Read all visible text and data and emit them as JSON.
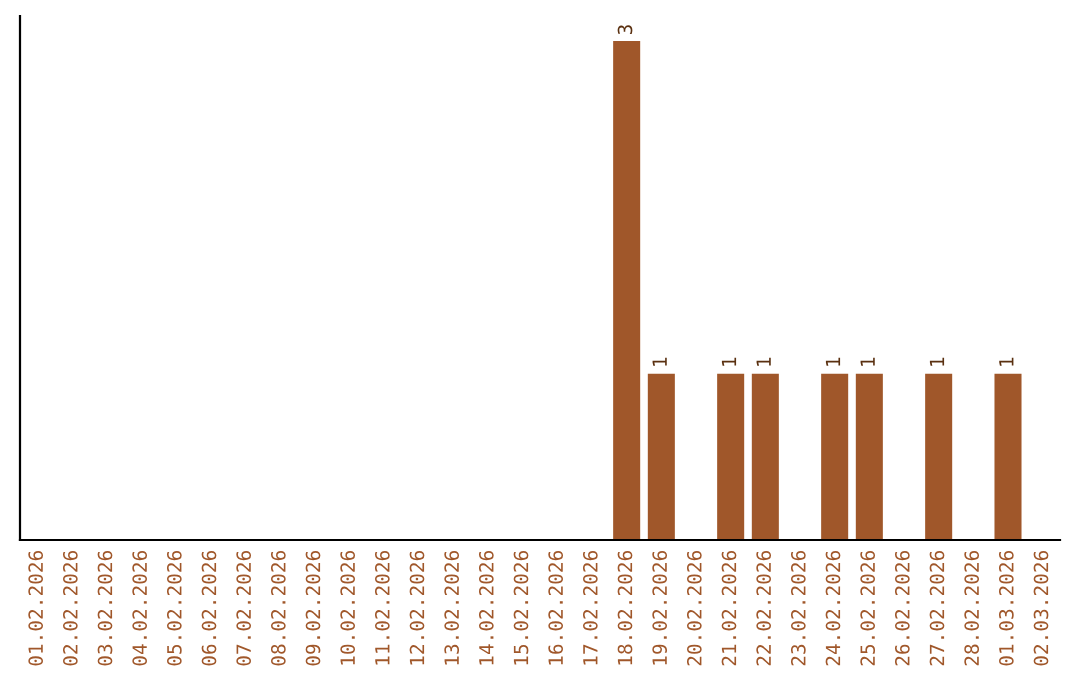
{
  "chart_data": {
    "type": "bar",
    "categories": [
      "01.02.2026",
      "02.02.2026",
      "03.02.2026",
      "04.02.2026",
      "05.02.2026",
      "06.02.2026",
      "07.02.2026",
      "08.02.2026",
      "09.02.2026",
      "10.02.2026",
      "11.02.2026",
      "12.02.2026",
      "13.02.2026",
      "14.02.2026",
      "15.02.2026",
      "16.02.2026",
      "17.02.2026",
      "18.02.2026",
      "19.02.2026",
      "20.02.2026",
      "21.02.2026",
      "22.02.2026",
      "23.02.2026",
      "24.02.2026",
      "25.02.2026",
      "26.02.2026",
      "27.02.2026",
      "28.02.2026",
      "01.03.2026",
      "02.03.2026"
    ],
    "values": [
      null,
      null,
      null,
      null,
      null,
      null,
      null,
      null,
      null,
      null,
      null,
      null,
      null,
      null,
      null,
      null,
      null,
      3,
      1,
      null,
      1,
      1,
      null,
      1,
      1,
      null,
      1,
      null,
      1,
      null
    ],
    "value_labels": [
      null,
      null,
      null,
      null,
      null,
      null,
      null,
      null,
      null,
      null,
      null,
      null,
      null,
      null,
      null,
      null,
      null,
      "3",
      "1",
      null,
      "1",
      "1",
      null,
      "1",
      "1",
      null,
      "1",
      null,
      "1",
      null
    ],
    "color": "#a0572a",
    "grid": false,
    "legend": false,
    "tick_labels": "x"
  }
}
